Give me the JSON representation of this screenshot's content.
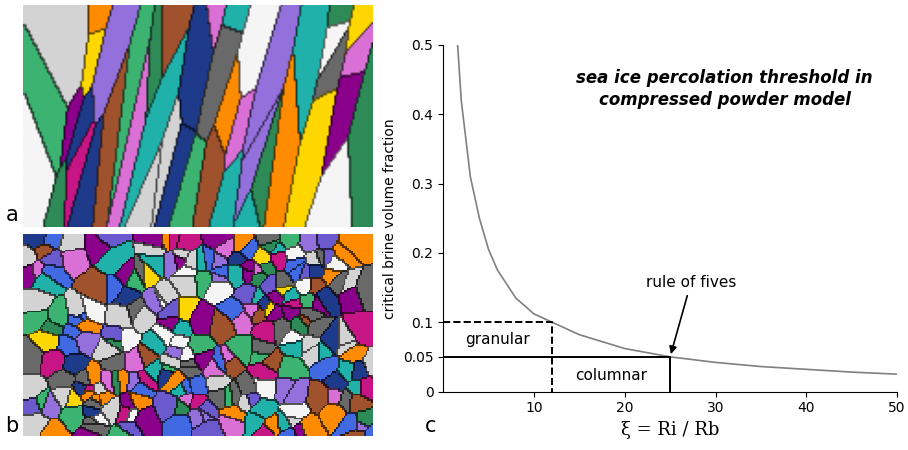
{
  "panel_labels": [
    "a",
    "b",
    "c"
  ],
  "chart_data": {
    "type": "line",
    "title": "sea ice percolation threshold in\ncompressed powder model",
    "x_label": "ξ = Ri / Rb",
    "y_label": "critical brine volume fraction",
    "x": [
      1.6,
      2,
      3,
      4,
      5,
      6,
      8,
      10,
      12,
      15,
      20,
      25,
      30,
      35,
      40,
      45,
      50
    ],
    "values": [
      0.5,
      0.42,
      0.31,
      0.25,
      0.205,
      0.175,
      0.135,
      0.112,
      0.1,
      0.082,
      0.062,
      0.05,
      0.042,
      0.036,
      0.032,
      0.028,
      0.025
    ],
    "color": "#808080",
    "xlim": [
      0,
      50
    ],
    "xticks": [
      10,
      20,
      30,
      40,
      50
    ],
    "ylim": [
      0,
      0.5
    ],
    "yticks": [
      0,
      0.05,
      0.1,
      0.2,
      0.3,
      0.4,
      0.5
    ],
    "annotations": [
      {
        "text": "granular",
        "x": 12,
        "y": 0.1,
        "line_style": "dashed"
      },
      {
        "text": "columnar",
        "x": 25,
        "y": 0.05,
        "line_style": "solid"
      },
      {
        "text": "rule of fives",
        "x": 25,
        "y": 0.05
      }
    ]
  }
}
